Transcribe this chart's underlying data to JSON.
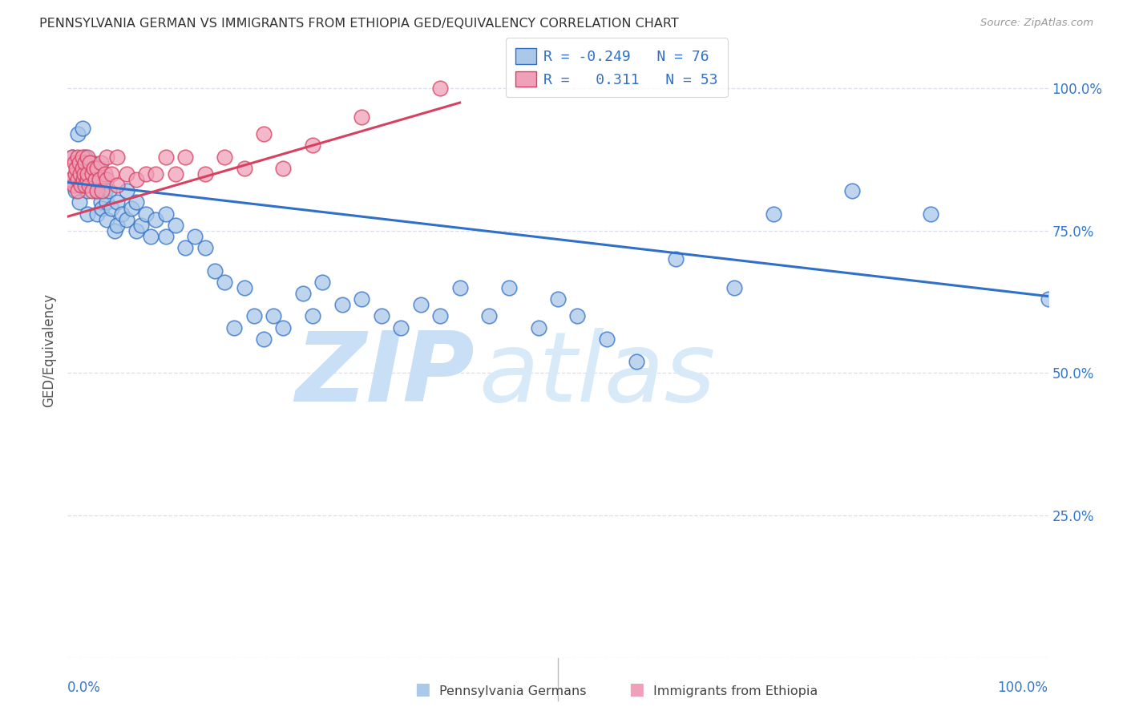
{
  "title": "PENNSYLVANIA GERMAN VS IMMIGRANTS FROM ETHIOPIA GED/EQUIVALENCY CORRELATION CHART",
  "source": "Source: ZipAtlas.com",
  "ylabel": "GED/Equivalency",
  "xlim": [
    0.0,
    1.0
  ],
  "ylim": [
    0.0,
    1.08
  ],
  "blue_R": "-0.249",
  "blue_N": "76",
  "pink_R": "0.311",
  "pink_N": "53",
  "blue_color": "#aac8e8",
  "pink_color": "#f0a0b8",
  "blue_line_color": "#3070c8",
  "pink_line_color": "#d84060",
  "watermark_zip": "ZIP",
  "watermark_atlas": "atlas",
  "yticks": [
    0.0,
    0.25,
    0.5,
    0.75,
    1.0
  ],
  "ytick_labels": [
    "",
    "25.0%",
    "50.0%",
    "75.0%",
    "100.0%"
  ],
  "blue_scatter_x": [
    0.005,
    0.008,
    0.01,
    0.01,
    0.012,
    0.015,
    0.015,
    0.017,
    0.018,
    0.02,
    0.02,
    0.02,
    0.022,
    0.025,
    0.025,
    0.03,
    0.03,
    0.032,
    0.034,
    0.035,
    0.035,
    0.038,
    0.04,
    0.04,
    0.042,
    0.045,
    0.048,
    0.05,
    0.05,
    0.055,
    0.06,
    0.06,
    0.065,
    0.07,
    0.07,
    0.075,
    0.08,
    0.085,
    0.09,
    0.1,
    0.1,
    0.11,
    0.12,
    0.13,
    0.14,
    0.15,
    0.16,
    0.17,
    0.18,
    0.19,
    0.2,
    0.21,
    0.22,
    0.24,
    0.25,
    0.26,
    0.28,
    0.3,
    0.32,
    0.34,
    0.36,
    0.38,
    0.4,
    0.43,
    0.45,
    0.48,
    0.5,
    0.52,
    0.55,
    0.58,
    0.62,
    0.68,
    0.72,
    0.8,
    0.88,
    1.0
  ],
  "blue_scatter_y": [
    0.88,
    0.82,
    0.85,
    0.92,
    0.8,
    0.87,
    0.93,
    0.83,
    0.88,
    0.82,
    0.86,
    0.78,
    0.84,
    0.83,
    0.87,
    0.82,
    0.78,
    0.86,
    0.8,
    0.83,
    0.79,
    0.82,
    0.8,
    0.77,
    0.82,
    0.79,
    0.75,
    0.8,
    0.76,
    0.78,
    0.77,
    0.82,
    0.79,
    0.75,
    0.8,
    0.76,
    0.78,
    0.74,
    0.77,
    0.74,
    0.78,
    0.76,
    0.72,
    0.74,
    0.72,
    0.68,
    0.66,
    0.58,
    0.65,
    0.6,
    0.56,
    0.6,
    0.58,
    0.64,
    0.6,
    0.66,
    0.62,
    0.63,
    0.6,
    0.58,
    0.62,
    0.6,
    0.65,
    0.6,
    0.65,
    0.58,
    0.63,
    0.6,
    0.56,
    0.52,
    0.7,
    0.65,
    0.78,
    0.82,
    0.78,
    0.63
  ],
  "pink_scatter_x": [
    0.003,
    0.005,
    0.006,
    0.007,
    0.008,
    0.009,
    0.01,
    0.01,
    0.01,
    0.012,
    0.013,
    0.014,
    0.015,
    0.015,
    0.016,
    0.017,
    0.018,
    0.018,
    0.02,
    0.02,
    0.02,
    0.022,
    0.023,
    0.025,
    0.025,
    0.027,
    0.028,
    0.03,
    0.03,
    0.032,
    0.034,
    0.035,
    0.038,
    0.04,
    0.04,
    0.045,
    0.05,
    0.05,
    0.06,
    0.07,
    0.08,
    0.09,
    0.1,
    0.11,
    0.12,
    0.14,
    0.16,
    0.18,
    0.2,
    0.22,
    0.25,
    0.3,
    0.38
  ],
  "pink_scatter_y": [
    0.84,
    0.88,
    0.83,
    0.87,
    0.85,
    0.86,
    0.84,
    0.88,
    0.82,
    0.87,
    0.85,
    0.83,
    0.86,
    0.88,
    0.84,
    0.85,
    0.83,
    0.87,
    0.84,
    0.88,
    0.85,
    0.83,
    0.87,
    0.85,
    0.82,
    0.86,
    0.84,
    0.86,
    0.82,
    0.84,
    0.87,
    0.82,
    0.85,
    0.84,
    0.88,
    0.85,
    0.88,
    0.83,
    0.85,
    0.84,
    0.85,
    0.85,
    0.88,
    0.85,
    0.88,
    0.85,
    0.88,
    0.86,
    0.92,
    0.86,
    0.9,
    0.95,
    1.0
  ],
  "blue_line_x0": 0.0,
  "blue_line_x1": 1.0,
  "blue_line_y0": 0.835,
  "blue_line_y1": 0.635,
  "pink_line_x0": 0.0,
  "pink_line_x1": 0.4,
  "pink_line_y0": 0.775,
  "pink_line_y1": 0.975,
  "background_color": "#ffffff",
  "grid_color": "#ddddee",
  "title_color": "#333333",
  "axis_label_color": "#3377cc",
  "watermark_color": "#ddeeff"
}
